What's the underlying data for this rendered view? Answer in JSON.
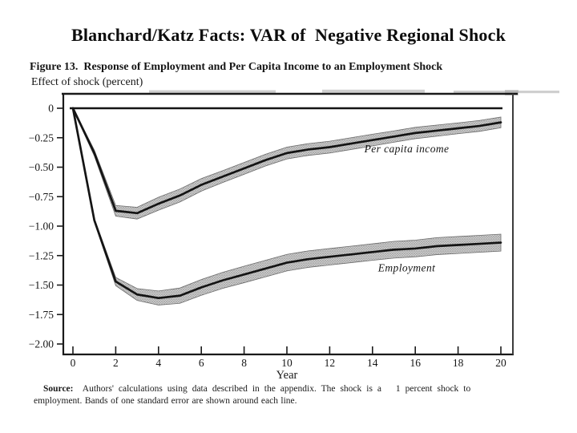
{
  "slide": {
    "title": "Blanchard/Katz Facts: VAR of  Negative Regional Shock",
    "background_color": "#ffffff",
    "ink_color": "#141414",
    "band_fill_color": "#b5b5b5"
  },
  "figure": {
    "caption": "Figure 13.  Response of Employment and Per Capita Income to an Employment Shock",
    "units_label": "Effect of shock (percent)",
    "source_label": "Source:",
    "source_line1_rest": "  Authors' calculations using data described in the appendix. The shock is a   1 percent shock to",
    "source_line2": "employment. Bands of one standard error are shown around each line."
  },
  "chart_data": {
    "type": "line",
    "title": "Figure 13. Response of Employment and Per Capita Income to an Employment Shock",
    "xlabel": "Year",
    "ylabel": "Effect of shock (percent)",
    "xlim": [
      0,
      20
    ],
    "ylim": [
      -2.0,
      0
    ],
    "grid": false,
    "legend_position": "inline-annotations",
    "band_note": "Bands of one standard error are shown around each line",
    "x": [
      0,
      1,
      2,
      3,
      4,
      5,
      6,
      7,
      8,
      9,
      10,
      11,
      12,
      13,
      14,
      15,
      16,
      17,
      18,
      19,
      20
    ],
    "x_ticks": [
      0,
      2,
      4,
      6,
      8,
      10,
      12,
      14,
      16,
      18,
      20
    ],
    "x_tick_labels": [
      "0",
      "2",
      "4",
      "6",
      "8",
      "10",
      "12",
      "14",
      "16",
      "18",
      "20"
    ],
    "y_ticks": [
      0,
      -0.25,
      -0.5,
      -0.75,
      -1.0,
      -1.25,
      -1.5,
      -1.75,
      -2.0
    ],
    "y_tick_labels": [
      "0",
      "−0.25",
      "−0.50",
      "−0.75",
      "−1.00",
      "−1.25",
      "−1.50",
      "−1.75",
      "−2.00"
    ],
    "series": [
      {
        "id": "per-capita-income",
        "name": "Per capita income",
        "values": [
          0,
          -0.38,
          -0.87,
          -0.89,
          -0.81,
          -0.74,
          -0.65,
          -0.58,
          -0.51,
          -0.44,
          -0.38,
          -0.35,
          -0.33,
          -0.3,
          -0.27,
          -0.24,
          -0.21,
          -0.19,
          -0.17,
          -0.15,
          -0.12
        ],
        "band_halfwidth": [
          0.005,
          0.025,
          0.045,
          0.05,
          0.055,
          0.055,
          0.053,
          0.05,
          0.05,
          0.05,
          0.05,
          0.05,
          0.05,
          0.05,
          0.05,
          0.048,
          0.048,
          0.047,
          0.046,
          0.046,
          0.045
        ],
        "label_x": 15.6,
        "label_y": -0.375
      },
      {
        "id": "employment",
        "name": "Employment",
        "values": [
          0,
          -0.95,
          -1.47,
          -1.58,
          -1.61,
          -1.59,
          -1.52,
          -1.46,
          -1.41,
          -1.36,
          -1.31,
          -1.28,
          -1.26,
          -1.24,
          -1.22,
          -1.2,
          -1.19,
          -1.17,
          -1.16,
          -1.15,
          -1.14
        ],
        "band_halfwidth": [
          0.005,
          0.015,
          0.035,
          0.05,
          0.06,
          0.065,
          0.067,
          0.068,
          0.07,
          0.07,
          0.07,
          0.07,
          0.07,
          0.07,
          0.07,
          0.071,
          0.071,
          0.072,
          0.072,
          0.072,
          0.072
        ],
        "label_x": 15.6,
        "label_y": -1.385
      }
    ]
  }
}
